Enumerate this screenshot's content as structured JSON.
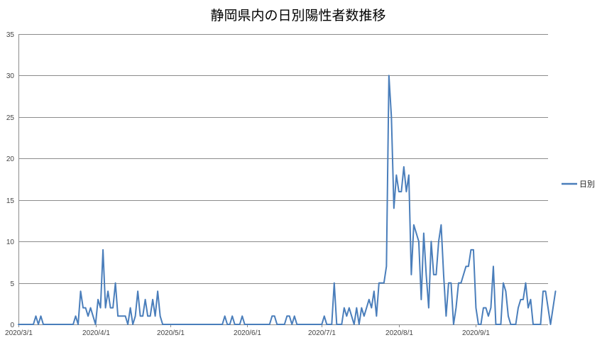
{
  "chart_data": {
    "type": "line",
    "title": "静岡県内の日別陽性者数推移",
    "xlabel": "",
    "ylabel": "",
    "ylim": [
      0,
      35
    ],
    "yticks": [
      0,
      5,
      10,
      15,
      20,
      25,
      30,
      35
    ],
    "x_start": "2020/3/1",
    "x_end": "2020/9/30",
    "x_ticks": [
      "2020/3/1",
      "2020/4/1",
      "2020/5/1",
      "2020/6/1",
      "2020/7/1",
      "2020/8/1",
      "2020/9/1"
    ],
    "grid": true,
    "legend_position": "right",
    "series": [
      {
        "name": "日別",
        "color": "#4a7ebb",
        "values": [
          0,
          0,
          0,
          0,
          0,
          0,
          0,
          1,
          0,
          1,
          0,
          0,
          0,
          0,
          0,
          0,
          0,
          0,
          0,
          0,
          0,
          0,
          0,
          1,
          0,
          4,
          2,
          2,
          1,
          2,
          1,
          0,
          3,
          2,
          9,
          2,
          4,
          2,
          2,
          5,
          1,
          1,
          1,
          1,
          0,
          2,
          0,
          1,
          4,
          1,
          1,
          3,
          1,
          1,
          3,
          1,
          4,
          1,
          0,
          0,
          0,
          0,
          0,
          0,
          0,
          0,
          0,
          0,
          0,
          0,
          0,
          0,
          0,
          0,
          0,
          0,
          0,
          0,
          0,
          0,
          0,
          0,
          0,
          1,
          0,
          0,
          1,
          0,
          0,
          0,
          1,
          0,
          0,
          0,
          0,
          0,
          0,
          0,
          0,
          0,
          0,
          0,
          1,
          1,
          0,
          0,
          0,
          0,
          1,
          1,
          0,
          1,
          0,
          0,
          0,
          0,
          0,
          0,
          0,
          0,
          0,
          0,
          0,
          1,
          0,
          0,
          0,
          5,
          0,
          0,
          0,
          2,
          1,
          2,
          1,
          0,
          2,
          0,
          2,
          1,
          2,
          3,
          2,
          4,
          1,
          5,
          5,
          5,
          7,
          30,
          25,
          14,
          18,
          16,
          16,
          19,
          16,
          18,
          6,
          12,
          11,
          10,
          3,
          11,
          6,
          2,
          10,
          6,
          6,
          10,
          12,
          6,
          1,
          5,
          5,
          0,
          2,
          5,
          5,
          6,
          7,
          7,
          9,
          9,
          2,
          0,
          0,
          2,
          2,
          1,
          2,
          7,
          0,
          0,
          0,
          5,
          4,
          1,
          0,
          0,
          0,
          2,
          3,
          3,
          5,
          2,
          3,
          0,
          0,
          0,
          0,
          4,
          4,
          2,
          0,
          2,
          4
        ]
      }
    ]
  }
}
